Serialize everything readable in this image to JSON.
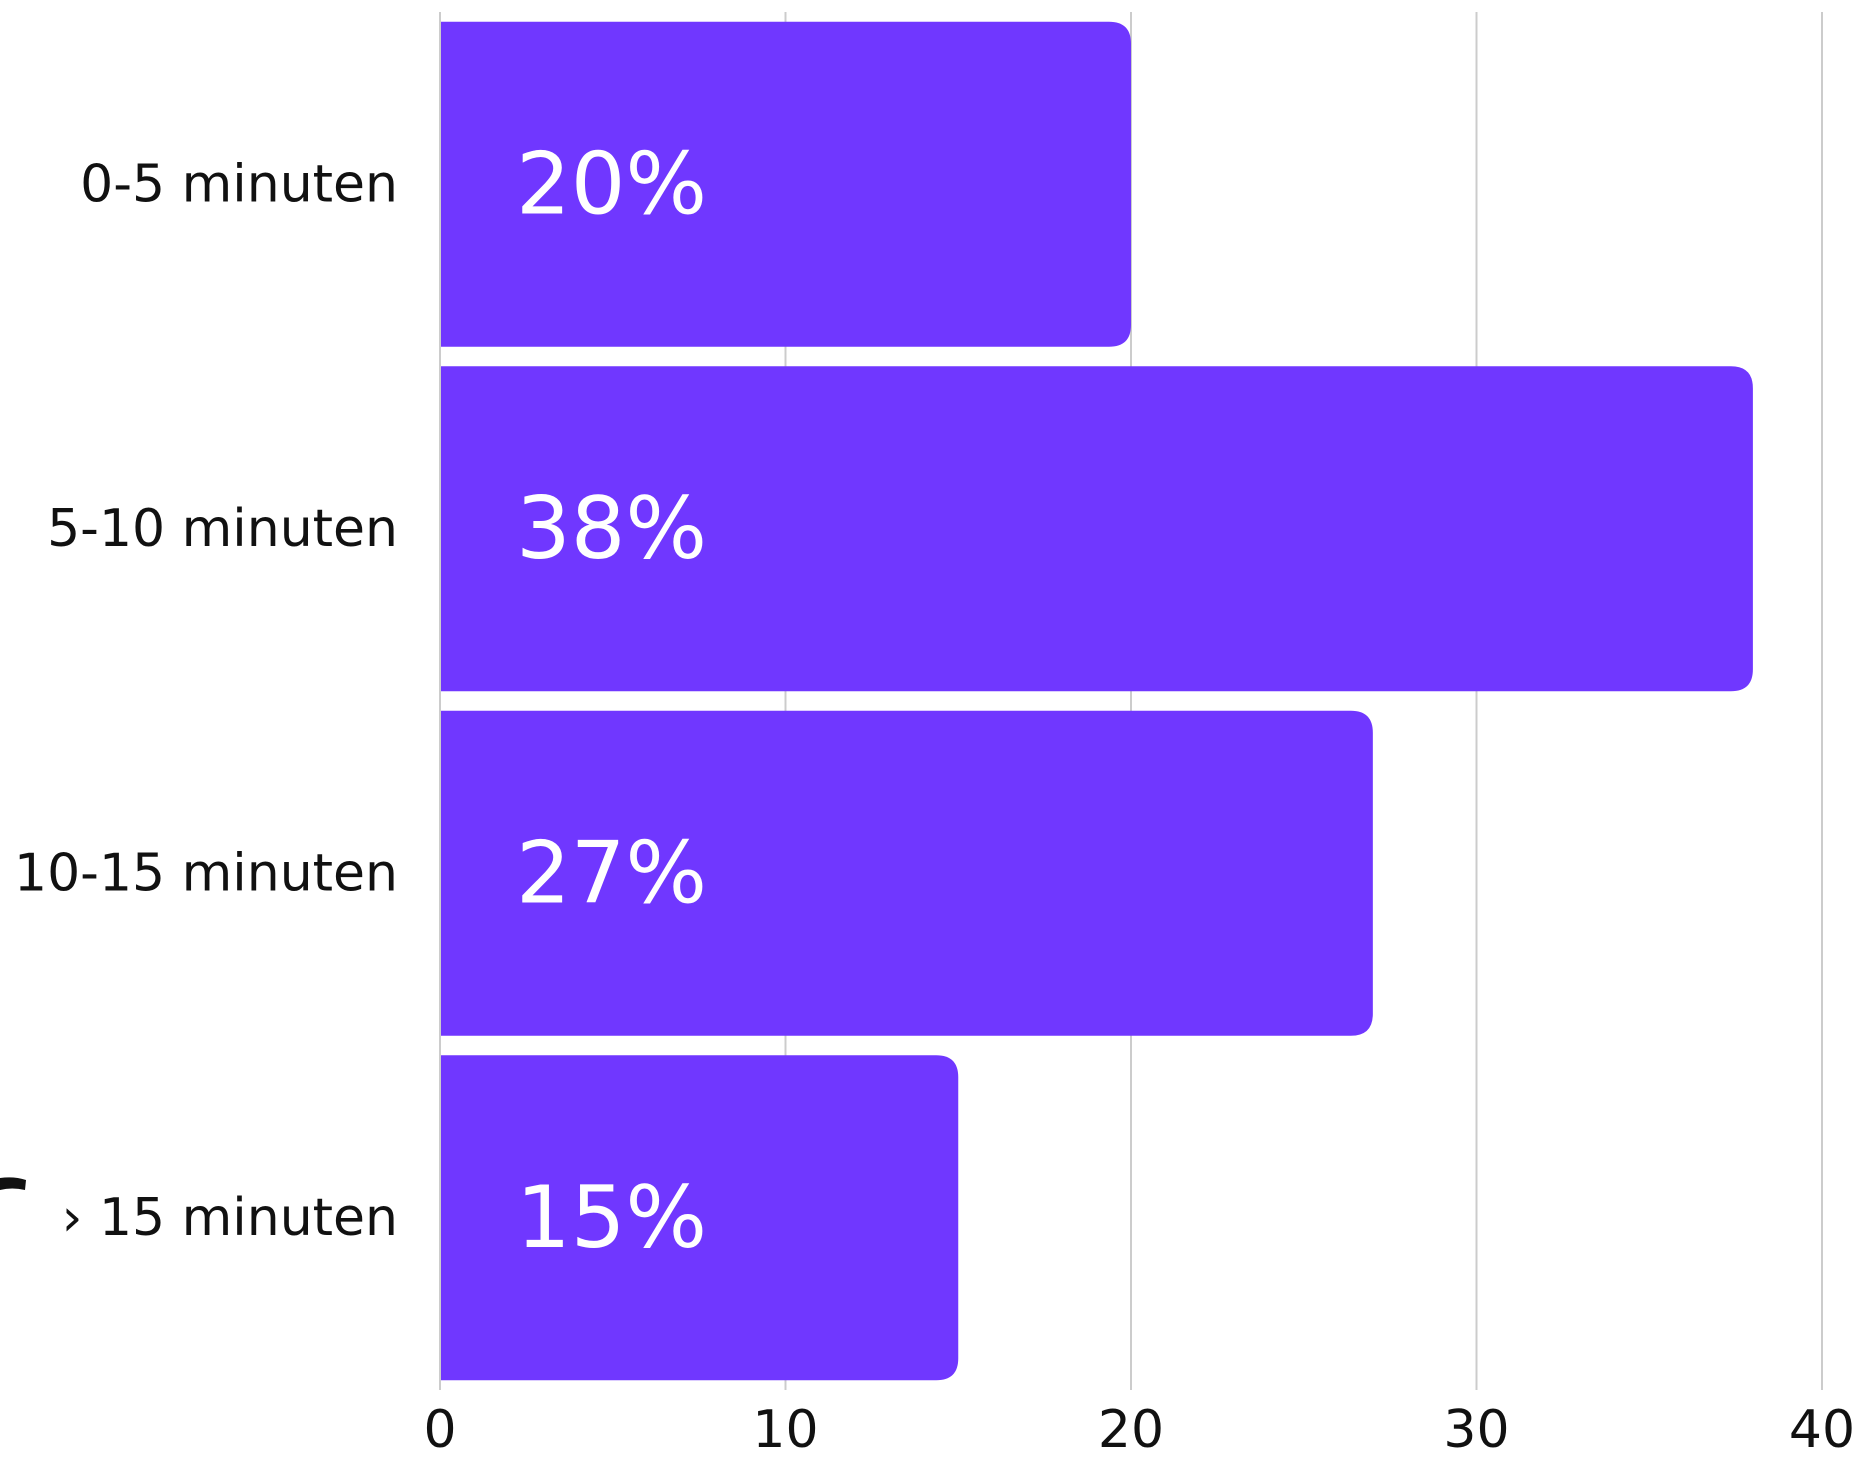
{
  "chart_data": {
    "type": "bar",
    "orientation": "horizontal",
    "categories": [
      "0-5 minuten",
      "5-10 minuten",
      "10-15 minuten",
      "› 15 minuten"
    ],
    "values": [
      20,
      38,
      27,
      15
    ],
    "data_labels": [
      "20%",
      "38%",
      "27%",
      "15%"
    ],
    "xlim": [
      0,
      40
    ],
    "x_ticks": [
      0,
      10,
      20,
      30,
      40
    ],
    "x_tick_labels": [
      "0",
      "10",
      "20",
      "30",
      "40"
    ],
    "grid": true,
    "legend": "none",
    "bar_color": "#7037FF",
    "label_color": "#FFFFFF",
    "grid_color": "#CCCCCC"
  }
}
